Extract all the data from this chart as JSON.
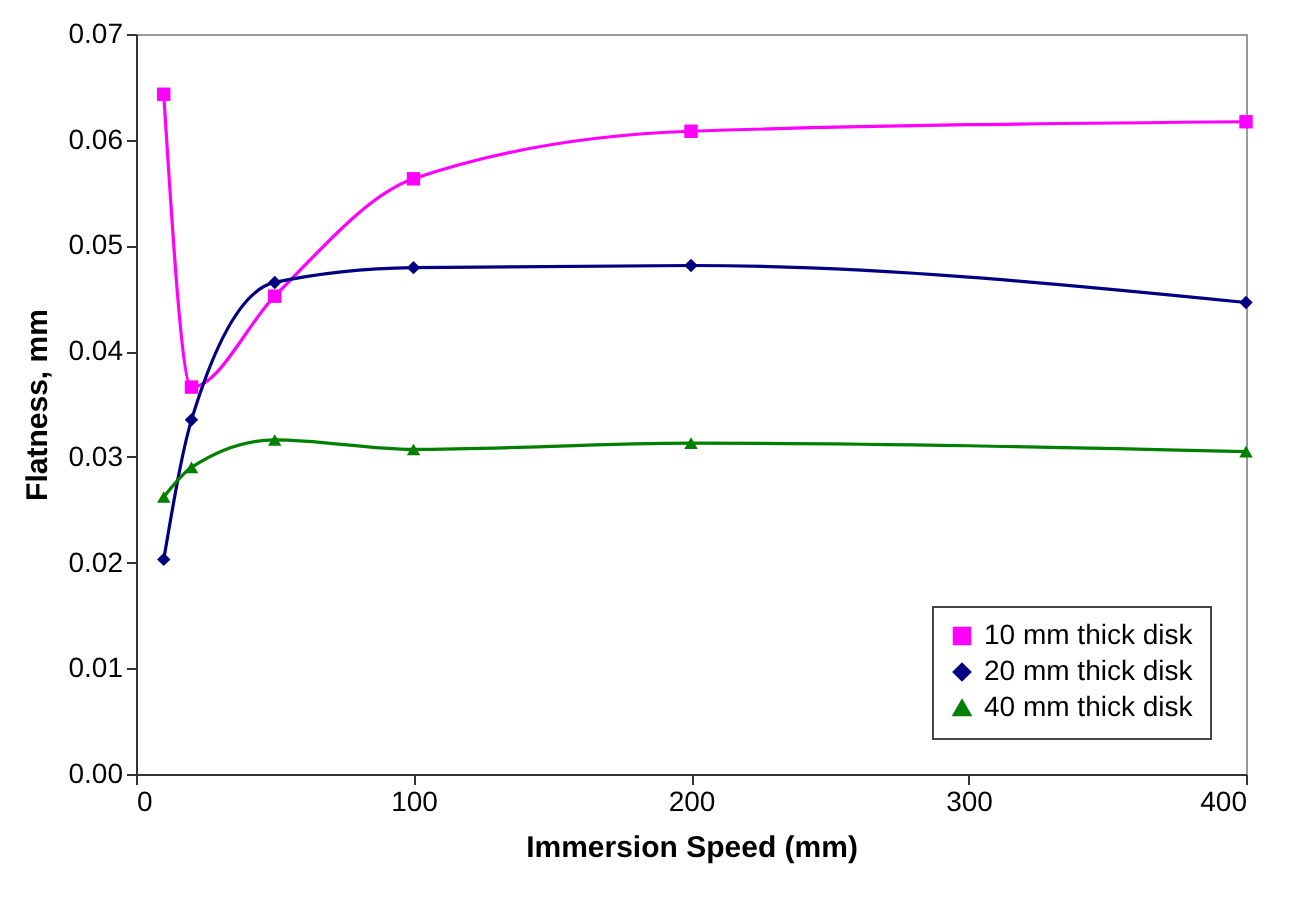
{
  "chart_data": {
    "type": "line",
    "xlabel": "Immersion Speed (mm)",
    "ylabel": "Flatness, mm",
    "x": [
      10,
      20,
      50,
      100,
      200,
      400
    ],
    "series": [
      {
        "name": "10 mm thick disk",
        "color": "#ff00ff",
        "marker": "square",
        "values": [
          0.0643,
          0.0366,
          0.0452,
          0.0563,
          0.0608,
          0.0617
        ]
      },
      {
        "name": "20 mm thick disk",
        "color": "#000080",
        "marker": "diamond",
        "values": [
          0.0203,
          0.0335,
          0.0465,
          0.0479,
          0.0481,
          0.0446
        ]
      },
      {
        "name": "40 mm thick disk",
        "color": "#008000",
        "marker": "triangle",
        "values": [
          0.0262,
          0.029,
          0.0316,
          0.0307,
          0.0313,
          0.0305
        ]
      }
    ],
    "xlim": [
      0,
      400
    ],
    "xticks": [
      0,
      100,
      200,
      300,
      400
    ],
    "ylim": [
      0,
      0.07
    ],
    "yticks": [
      {
        "value": 0,
        "label": "0.00"
      },
      {
        "value": 0.01,
        "label": "0.01"
      },
      {
        "value": 0.02,
        "label": "0.02"
      },
      {
        "value": 0.03,
        "label": "0.03"
      },
      {
        "value": 0.04,
        "label": "0.04"
      },
      {
        "value": 0.05,
        "label": "0.05"
      },
      {
        "value": 0.06,
        "label": "0.06"
      },
      {
        "value": 0.07,
        "label": "0.07"
      }
    ],
    "grid": false,
    "legend": "bottom right"
  }
}
